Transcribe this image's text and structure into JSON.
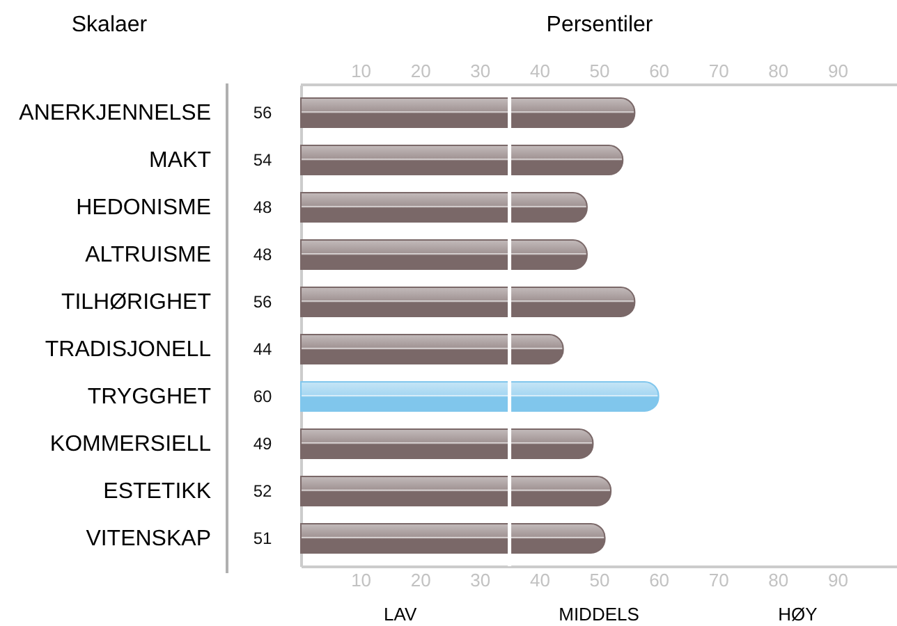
{
  "chart_data": {
    "type": "bar",
    "orientation": "horizontal",
    "ylabel": "Skalaer",
    "x2label": "Persentiler",
    "categories": [
      "ANERKJENNELSE",
      "MAKT",
      "HEDONISME",
      "ALTRUISME",
      "TILHØRIGHET",
      "TRADISJONELL",
      "TRYGGHET",
      "KOMMERSIELL",
      "ESTETIKK",
      "VITENSKAP"
    ],
    "values": [
      56,
      54,
      48,
      48,
      56,
      44,
      60,
      49,
      52,
      51
    ],
    "colors": [
      "#7a6868",
      "#7a6868",
      "#7a6868",
      "#7a6868",
      "#7a6868",
      "#7a6868",
      "#80c6ec",
      "#7a6868",
      "#7a6868",
      "#7a6868"
    ],
    "data_labels": true,
    "xlim": [
      0,
      100
    ],
    "xticks": [
      10,
      20,
      30,
      40,
      50,
      60,
      70,
      80,
      90
    ],
    "x2lim": [
      0,
      100
    ],
    "x2ticks": [
      10,
      20,
      30,
      40,
      50,
      60,
      70,
      80,
      90
    ],
    "ref_lines": [
      {
        "axis": "x",
        "value": 35,
        "color": "#ffffff"
      }
    ],
    "annotations": [
      "LAV",
      "MIDDELS",
      "HØY"
    ]
  }
}
